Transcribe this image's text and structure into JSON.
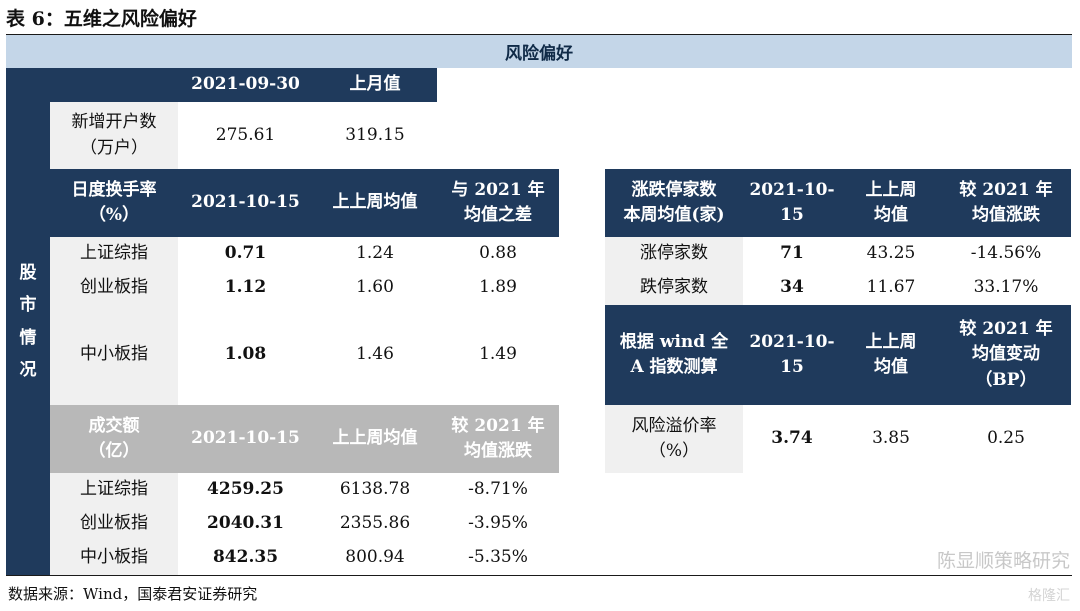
{
  "title": "表 6：五维之风险偏好",
  "band": "风险偏好",
  "side_label": "股\n市\n情\n况",
  "acct": {
    "h1": "2021-09-30",
    "h2": "上月值",
    "label": "新增开户数\n（万户）",
    "v1": "275.61",
    "v2": "319.15"
  },
  "turnover": {
    "h0": "日度换手率\n（%）",
    "h1": "2021-10-15",
    "h2": "上上周均值",
    "h3": "与 2021 年\n均值之差",
    "rows": [
      {
        "name": "上证综指",
        "v1": "0.71",
        "v2": "1.24",
        "v3": "0.88"
      },
      {
        "name": "创业板指",
        "v1": "1.12",
        "v2": "1.60",
        "v3": "1.89"
      },
      {
        "name": "中小板指",
        "v1": "1.08",
        "v2": "1.46",
        "v3": "1.49"
      }
    ]
  },
  "volume": {
    "h0": "成交额\n（亿）",
    "h1": "2021-10-15",
    "h2": "上上周均值",
    "h3": "较 2021 年\n均值涨跌",
    "rows": [
      {
        "name": "上证综指",
        "v1": "4259.25",
        "v2": "6138.78",
        "v3": "-8.71%"
      },
      {
        "name": "创业板指",
        "v1": "2040.31",
        "v2": "2355.86",
        "v3": "-3.95%"
      },
      {
        "name": "中小板指",
        "v1": "842.35",
        "v2": "800.94",
        "v3": "-5.35%"
      }
    ]
  },
  "limit": {
    "h0": "涨跌停家数\n本周均值(家)",
    "h1": "2021-10-\n15",
    "h2": "上上周\n均值",
    "h3": "较 2021 年\n均值涨跌",
    "rows": [
      {
        "name": "涨停家数",
        "v1": "71",
        "v2": "43.25",
        "v3": "-14.56%"
      },
      {
        "name": "跌停家数",
        "v1": "34",
        "v2": "11.67",
        "v3": "33.17%"
      }
    ]
  },
  "erp": {
    "h0": "根据 wind 全\nA 指数测算",
    "h1": "2021-10-\n15",
    "h2": "上上周\n均值",
    "h3": "较 2021 年\n均值变动\n（BP）",
    "label": "风险溢价率\n（%）",
    "v1": "3.74",
    "v2": "3.85",
    "v3": "0.25"
  },
  "source": "数据来源：Wind，国泰君安证券研究",
  "watermark": "陈显顺策略研究",
  "watermark2": "格隆汇"
}
